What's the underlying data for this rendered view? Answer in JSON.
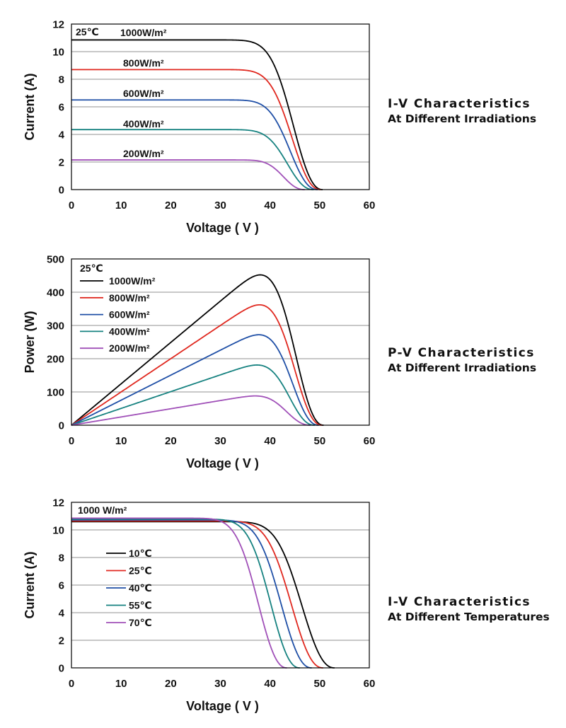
{
  "colors": {
    "black": "#000000",
    "red": "#e0281f",
    "blue": "#1f4fa6",
    "teal": "#168280",
    "purple": "#a050b8",
    "grid": "#a6a6a6"
  },
  "side_titles": [
    {
      "line1": "I-V Characteristics",
      "line2": "At Different Irradiations"
    },
    {
      "line1": "P-V Characteristics",
      "line2": "At Different Irradiations"
    },
    {
      "line1": "I-V Characteristics",
      "line2": "At Different Temperatures"
    }
  ],
  "chart_data": [
    {
      "type": "line",
      "xlabel": "Voltage ( V )",
      "ylabel": "Current (A)",
      "xlim": [
        0,
        60
      ],
      "ylim": [
        0,
        12
      ],
      "xticks": [
        "0",
        "10",
        "20",
        "30",
        "40",
        "50",
        "60"
      ],
      "yticks": [
        "0",
        "2",
        "4",
        "6",
        "8",
        "10",
        "12"
      ],
      "grid": "horizontal",
      "annotation": "25℃",
      "series": [
        {
          "name": "1000W/m²",
          "color": "black",
          "isc": 10.85,
          "voc": 50.6,
          "knee": 43.0
        },
        {
          "name": "800W/m²",
          "color": "red",
          "isc": 8.7,
          "voc": 50.2,
          "knee": 42.8
        },
        {
          "name": "600W/m²",
          "color": "blue",
          "isc": 6.5,
          "voc": 49.6,
          "knee": 42.5
        },
        {
          "name": "400W/m²",
          "color": "teal",
          "isc": 4.35,
          "voc": 48.8,
          "knee": 42.0
        },
        {
          "name": "200W/m²",
          "color": "purple",
          "isc": 2.15,
          "voc": 47.0,
          "knee": 41.5
        }
      ]
    },
    {
      "type": "line",
      "xlabel": "Voltage ( V )",
      "ylabel": "Power (W)",
      "xlim": [
        0,
        60
      ],
      "ylim": [
        0,
        500
      ],
      "xticks": [
        "0",
        "10",
        "20",
        "30",
        "40",
        "50",
        "60"
      ],
      "yticks": [
        "0",
        "100",
        "200",
        "300",
        "400",
        "500"
      ],
      "grid": "horizontal",
      "annotation": "25℃",
      "legend_position": "top-left",
      "series": [
        {
          "name": "1000W/m²",
          "color": "black",
          "isc": 10.85,
          "voc": 50.8,
          "knee": 43.0,
          "peak_power": 452
        },
        {
          "name": "800W/m²",
          "color": "red",
          "isc": 8.7,
          "voc": 50.5,
          "knee": 42.8,
          "peak_power": 362
        },
        {
          "name": "600W/m²",
          "color": "blue",
          "isc": 6.5,
          "voc": 49.8,
          "knee": 42.5,
          "peak_power": 272
        },
        {
          "name": "400W/m²",
          "color": "teal",
          "isc": 4.35,
          "voc": 49.0,
          "knee": 42.0,
          "peak_power": 181
        },
        {
          "name": "200W/m²",
          "color": "purple",
          "isc": 2.15,
          "voc": 48.2,
          "knee": 41.5,
          "peak_power": 88
        }
      ]
    },
    {
      "type": "line",
      "xlabel": "Voltage ( V )",
      "ylabel": "Current (A)",
      "xlim": [
        0,
        60
      ],
      "ylim": [
        0,
        12
      ],
      "xticks": [
        "0",
        "10",
        "20",
        "30",
        "40",
        "50",
        "60"
      ],
      "yticks": [
        "0",
        "2",
        "4",
        "6",
        "8",
        "10",
        "12"
      ],
      "grid": "horizontal",
      "annotation": "1000 W/m²",
      "legend_position": "left",
      "series": [
        {
          "name": "10℃",
          "color": "black",
          "isc": 10.6,
          "voc": 53.0,
          "knee": 44.5
        },
        {
          "name": "25℃",
          "color": "red",
          "isc": 10.65,
          "voc": 50.7,
          "knee": 42.5
        },
        {
          "name": "40℃",
          "color": "blue",
          "isc": 10.72,
          "voc": 48.4,
          "knee": 40.5
        },
        {
          "name": "55℃",
          "color": "teal",
          "isc": 10.78,
          "voc": 46.0,
          "knee": 38.5
        },
        {
          "name": "70℃",
          "color": "purple",
          "isc": 10.85,
          "voc": 43.4,
          "knee": 36.0
        }
      ]
    }
  ]
}
